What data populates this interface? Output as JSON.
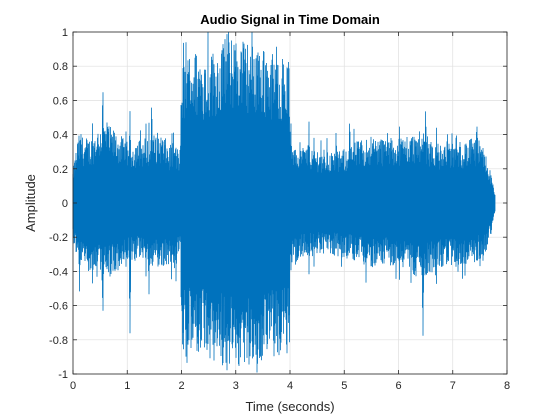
{
  "chart_data": {
    "type": "line",
    "title": "Audio Signal in Time Domain",
    "xlabel": "Time (seconds)",
    "ylabel": "Amplitude",
    "xlim": [
      0,
      8
    ],
    "ylim": [
      -1,
      1
    ],
    "xticks": [
      0,
      1,
      2,
      3,
      4,
      5,
      6,
      7,
      8
    ],
    "yticks": [
      -1,
      -0.8,
      -0.6,
      -0.4,
      -0.2,
      0,
      0.2,
      0.4,
      0.6,
      0.8,
      1
    ],
    "grid": true,
    "series": [
      {
        "color": "#0072BD",
        "duration": 7.78,
        "envelope": {
          "t": [
            0.0,
            0.1,
            0.3,
            0.55,
            0.8,
            1.0,
            1.3,
            1.6,
            1.8,
            1.98,
            2.0,
            2.2,
            2.5,
            2.8,
            3.1,
            3.4,
            3.7,
            3.99,
            4.0,
            4.3,
            4.6,
            4.9,
            5.2,
            5.5,
            5.8,
            6.1,
            6.4,
            6.8,
            7.1,
            7.4,
            7.6,
            7.7,
            7.78
          ],
          "upper": [
            0.2,
            0.4,
            0.38,
            0.48,
            0.42,
            0.36,
            0.38,
            0.42,
            0.34,
            0.32,
            0.82,
            0.9,
            0.88,
            0.95,
            0.98,
            0.92,
            0.88,
            0.85,
            0.38,
            0.34,
            0.32,
            0.3,
            0.36,
            0.4,
            0.38,
            0.4,
            0.42,
            0.34,
            0.36,
            0.38,
            0.3,
            0.18,
            0.05
          ],
          "lower": [
            -0.22,
            -0.38,
            -0.4,
            -0.46,
            -0.42,
            -0.36,
            -0.34,
            -0.4,
            -0.36,
            -0.34,
            -0.85,
            -0.92,
            -0.9,
            -0.96,
            -0.98,
            -0.94,
            -0.92,
            -0.88,
            -0.36,
            -0.32,
            -0.3,
            -0.32,
            -0.34,
            -0.38,
            -0.36,
            -0.4,
            -0.44,
            -0.38,
            -0.36,
            -0.36,
            -0.3,
            -0.2,
            -0.05
          ]
        },
        "peaks": [
          {
            "t": 0.15,
            "y": 0.44
          },
          {
            "t": 0.55,
            "y": 0.72
          },
          {
            "t": 1.05,
            "y": 0.55
          },
          {
            "t": 1.45,
            "y": 0.62
          },
          {
            "t": 1.85,
            "y": 0.45
          },
          {
            "t": 2.15,
            "y": 0.92
          },
          {
            "t": 2.55,
            "y": 0.95
          },
          {
            "t": 2.97,
            "y": 1.0
          },
          {
            "t": 3.3,
            "y": 0.98
          },
          {
            "t": 3.75,
            "y": 0.95
          },
          {
            "t": 4.35,
            "y": 0.48
          },
          {
            "t": 4.85,
            "y": 0.44
          },
          {
            "t": 5.1,
            "y": 0.52
          },
          {
            "t": 5.8,
            "y": 0.45
          },
          {
            "t": 6.5,
            "y": 0.58
          },
          {
            "t": 6.9,
            "y": 0.45
          },
          {
            "t": 7.45,
            "y": 0.48
          }
        ],
        "troughs": [
          {
            "t": 0.12,
            "y": -0.52
          },
          {
            "t": 0.55,
            "y": -0.7
          },
          {
            "t": 1.05,
            "y": -0.78
          },
          {
            "t": 1.4,
            "y": -0.55
          },
          {
            "t": 1.9,
            "y": -0.48
          },
          {
            "t": 2.1,
            "y": -0.98
          },
          {
            "t": 2.6,
            "y": -0.95
          },
          {
            "t": 3.0,
            "y": -1.0
          },
          {
            "t": 3.4,
            "y": -0.97
          },
          {
            "t": 3.8,
            "y": -0.98
          },
          {
            "t": 4.35,
            "y": -0.42
          },
          {
            "t": 5.4,
            "y": -0.48
          },
          {
            "t": 6.45,
            "y": -0.82
          },
          {
            "t": 7.1,
            "y": -0.45
          },
          {
            "t": 7.5,
            "y": -0.4
          }
        ]
      }
    ]
  }
}
